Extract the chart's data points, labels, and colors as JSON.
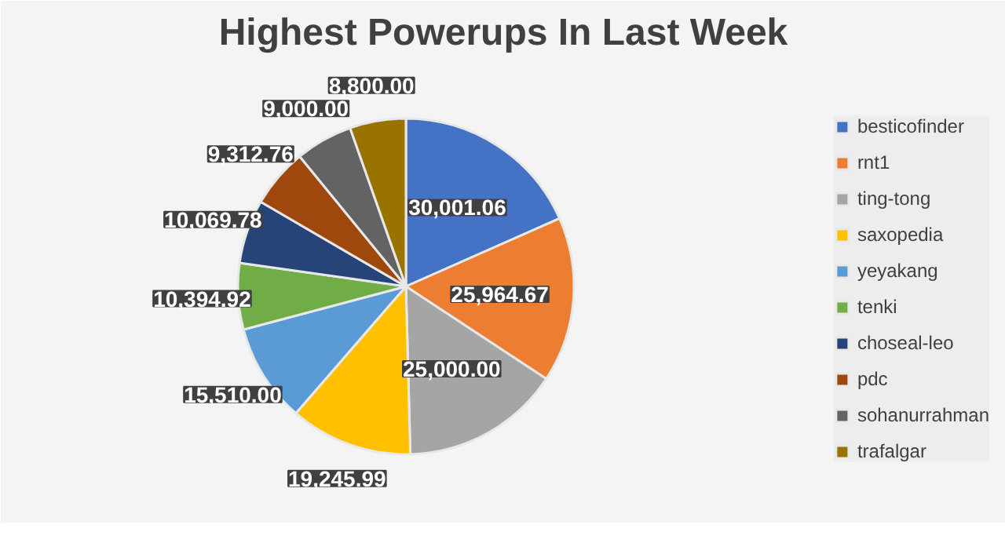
{
  "chart_data": {
    "type": "pie",
    "title": "Highest Powerups In Last Week",
    "categories": [
      "besticofinder",
      "rnt1",
      "ting-tong",
      "saxopedia",
      "yeyakang",
      "tenki",
      "choseal-leo",
      "pdc",
      "sohanurrahman",
      "trafalgar"
    ],
    "values": [
      30001.06,
      25964.67,
      25000.0,
      19245.99,
      15510.0,
      10394.92,
      10069.78,
      9312.76,
      9000.0,
      8800.0
    ],
    "value_labels": [
      "30,001.06",
      "25,964.67",
      "25,000.00",
      "19,245.99",
      "15,510.00",
      "10,394.92",
      "10,069.78",
      "9,312.76",
      "9,000.00",
      "8,800.00"
    ],
    "colors": [
      "#4472c4",
      "#ed7d31",
      "#a5a5a5",
      "#ffc000",
      "#5b9bd5",
      "#70ad47",
      "#264478",
      "#9e480e",
      "#636363",
      "#997300"
    ],
    "legend": "right"
  }
}
